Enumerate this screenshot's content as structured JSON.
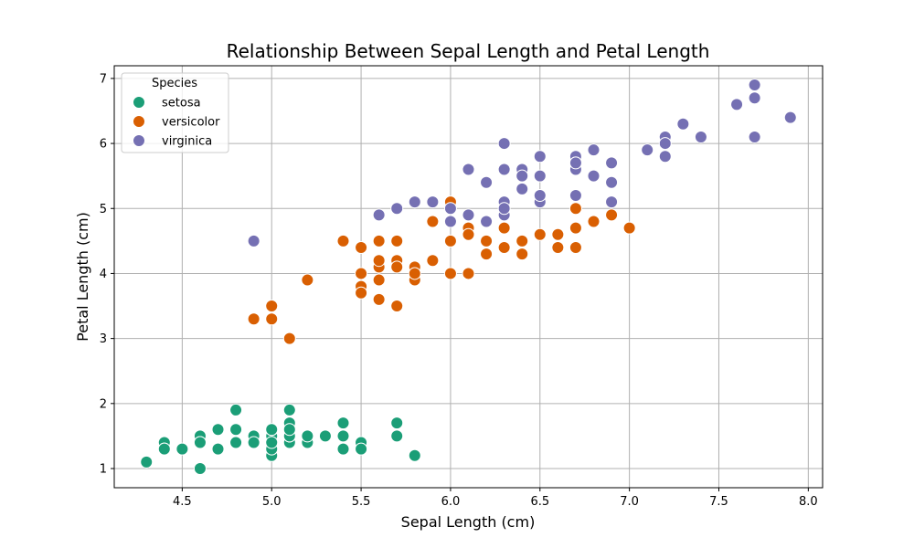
{
  "chart_data": {
    "type": "scatter",
    "title": "Relationship Between Sepal Length and Petal Length",
    "xlabel": "Sepal Length (cm)",
    "ylabel": "Petal Length (cm)",
    "xlim": [
      4.12,
      8.08
    ],
    "ylim": [
      0.705,
      7.195
    ],
    "xticks": [
      4.5,
      5.0,
      5.5,
      6.0,
      6.5,
      7.0,
      7.5,
      8.0
    ],
    "xtick_labels": [
      "4.5",
      "5.0",
      "5.5",
      "6.0",
      "6.5",
      "7.0",
      "7.5",
      "8.0"
    ],
    "yticks": [
      1,
      2,
      3,
      4,
      5,
      6,
      7
    ],
    "ytick_labels": [
      "1",
      "2",
      "3",
      "4",
      "5",
      "6",
      "7"
    ],
    "grid": true,
    "legend": {
      "title": "Species",
      "position": "top-left"
    },
    "series": [
      {
        "name": "setosa",
        "color": "#1b9e77",
        "points": [
          [
            5.1,
            1.4
          ],
          [
            4.9,
            1.4
          ],
          [
            4.7,
            1.3
          ],
          [
            4.6,
            1.5
          ],
          [
            5.0,
            1.4
          ],
          [
            5.4,
            1.7
          ],
          [
            4.6,
            1.4
          ],
          [
            5.0,
            1.5
          ],
          [
            4.4,
            1.4
          ],
          [
            4.9,
            1.5
          ],
          [
            5.4,
            1.5
          ],
          [
            4.8,
            1.6
          ],
          [
            4.8,
            1.4
          ],
          [
            4.3,
            1.1
          ],
          [
            5.8,
            1.2
          ],
          [
            5.7,
            1.5
          ],
          [
            5.4,
            1.3
          ],
          [
            5.1,
            1.4
          ],
          [
            5.7,
            1.7
          ],
          [
            5.1,
            1.5
          ],
          [
            5.4,
            1.7
          ],
          [
            5.1,
            1.5
          ],
          [
            4.6,
            1.0
          ],
          [
            5.1,
            1.7
          ],
          [
            4.8,
            1.9
          ],
          [
            5.0,
            1.6
          ],
          [
            5.0,
            1.6
          ],
          [
            5.2,
            1.5
          ],
          [
            5.2,
            1.4
          ],
          [
            4.7,
            1.6
          ],
          [
            4.8,
            1.6
          ],
          [
            5.4,
            1.5
          ],
          [
            5.2,
            1.5
          ],
          [
            5.5,
            1.4
          ],
          [
            4.9,
            1.5
          ],
          [
            5.0,
            1.2
          ],
          [
            5.5,
            1.3
          ],
          [
            4.9,
            1.4
          ],
          [
            4.4,
            1.3
          ],
          [
            5.1,
            1.5
          ],
          [
            5.0,
            1.3
          ],
          [
            4.5,
            1.3
          ],
          [
            4.4,
            1.3
          ],
          [
            5.0,
            1.6
          ],
          [
            5.1,
            1.9
          ],
          [
            4.8,
            1.4
          ],
          [
            5.1,
            1.6
          ],
          [
            4.6,
            1.4
          ],
          [
            5.3,
            1.5
          ],
          [
            5.0,
            1.4
          ]
        ]
      },
      {
        "name": "versicolor",
        "color": "#d95f02",
        "points": [
          [
            7.0,
            4.7
          ],
          [
            6.4,
            4.5
          ],
          [
            6.9,
            4.9
          ],
          [
            5.5,
            4.0
          ],
          [
            6.5,
            4.6
          ],
          [
            5.7,
            4.5
          ],
          [
            6.3,
            4.7
          ],
          [
            4.9,
            3.3
          ],
          [
            6.6,
            4.6
          ],
          [
            5.2,
            3.9
          ],
          [
            5.0,
            3.5
          ],
          [
            5.9,
            4.2
          ],
          [
            6.0,
            4.0
          ],
          [
            6.1,
            4.7
          ],
          [
            5.6,
            3.6
          ],
          [
            6.7,
            4.4
          ],
          [
            5.6,
            4.5
          ],
          [
            5.8,
            4.1
          ],
          [
            6.2,
            4.5
          ],
          [
            5.6,
            3.9
          ],
          [
            5.9,
            4.8
          ],
          [
            6.1,
            4.0
          ],
          [
            6.3,
            4.9
          ],
          [
            6.1,
            4.7
          ],
          [
            6.4,
            4.3
          ],
          [
            6.6,
            4.4
          ],
          [
            6.8,
            4.8
          ],
          [
            6.7,
            5.0
          ],
          [
            6.0,
            4.5
          ],
          [
            5.7,
            3.5
          ],
          [
            5.5,
            3.8
          ],
          [
            5.5,
            3.7
          ],
          [
            5.8,
            3.9
          ],
          [
            6.0,
            5.1
          ],
          [
            5.4,
            4.5
          ],
          [
            6.0,
            4.5
          ],
          [
            6.7,
            4.7
          ],
          [
            6.3,
            4.4
          ],
          [
            5.6,
            4.1
          ],
          [
            5.5,
            4.0
          ],
          [
            5.5,
            4.4
          ],
          [
            6.1,
            4.6
          ],
          [
            5.8,
            4.0
          ],
          [
            5.0,
            3.3
          ],
          [
            5.6,
            4.2
          ],
          [
            5.7,
            4.2
          ],
          [
            5.7,
            4.2
          ],
          [
            6.2,
            4.3
          ],
          [
            5.1,
            3.0
          ],
          [
            5.7,
            4.1
          ]
        ]
      },
      {
        "name": "virginica",
        "color": "#7570b3",
        "points": [
          [
            6.3,
            6.0
          ],
          [
            5.8,
            5.1
          ],
          [
            7.1,
            5.9
          ],
          [
            6.3,
            5.6
          ],
          [
            6.5,
            5.8
          ],
          [
            7.6,
            6.6
          ],
          [
            4.9,
            4.5
          ],
          [
            7.3,
            6.3
          ],
          [
            6.7,
            5.8
          ],
          [
            7.2,
            6.1
          ],
          [
            6.5,
            5.1
          ],
          [
            6.4,
            5.3
          ],
          [
            6.8,
            5.5
          ],
          [
            5.7,
            5.0
          ],
          [
            5.8,
            5.1
          ],
          [
            6.4,
            5.3
          ],
          [
            6.5,
            5.5
          ],
          [
            7.7,
            6.7
          ],
          [
            7.7,
            6.9
          ],
          [
            6.0,
            5.0
          ],
          [
            6.9,
            5.7
          ],
          [
            5.6,
            4.9
          ],
          [
            7.7,
            6.7
          ],
          [
            6.3,
            4.9
          ],
          [
            6.7,
            5.7
          ],
          [
            7.2,
            6.0
          ],
          [
            6.2,
            4.8
          ],
          [
            6.1,
            4.9
          ],
          [
            6.4,
            5.6
          ],
          [
            7.2,
            5.8
          ],
          [
            7.4,
            6.1
          ],
          [
            7.9,
            6.4
          ],
          [
            6.4,
            5.6
          ],
          [
            6.3,
            5.1
          ],
          [
            6.1,
            5.6
          ],
          [
            7.7,
            6.1
          ],
          [
            6.3,
            5.6
          ],
          [
            6.4,
            5.5
          ],
          [
            6.0,
            4.8
          ],
          [
            6.9,
            5.4
          ],
          [
            6.7,
            5.6
          ],
          [
            6.9,
            5.1
          ],
          [
            5.8,
            5.1
          ],
          [
            6.8,
            5.9
          ],
          [
            6.7,
            5.7
          ],
          [
            6.7,
            5.2
          ],
          [
            6.3,
            5.0
          ],
          [
            6.5,
            5.2
          ],
          [
            6.2,
            5.4
          ],
          [
            5.9,
            5.1
          ]
        ]
      }
    ]
  }
}
